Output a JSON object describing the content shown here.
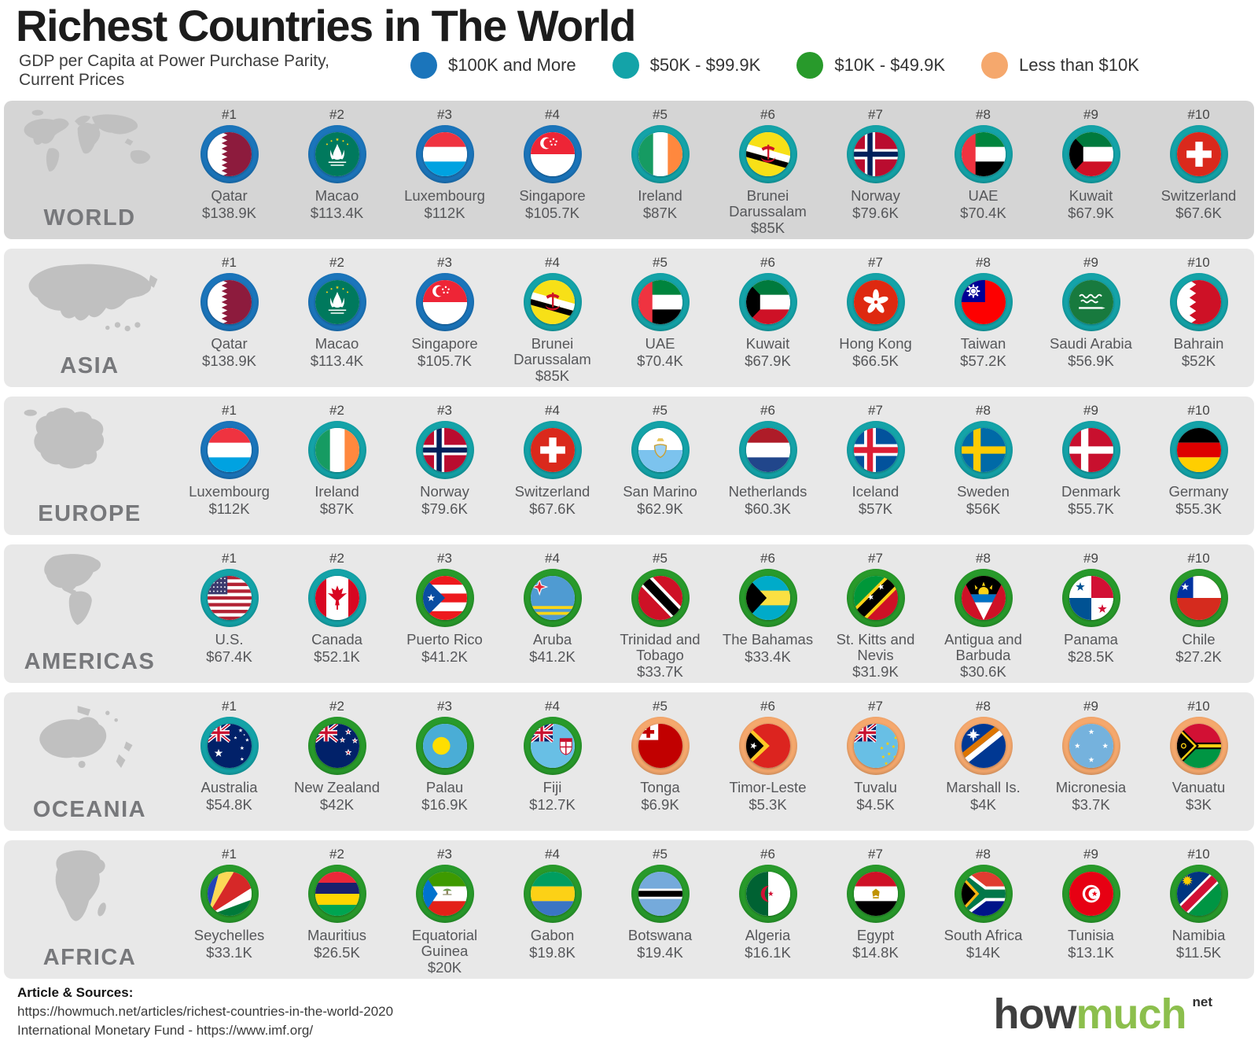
{
  "header": {
    "title": "Richest Countries in The World",
    "subtitle_line1": "GDP per Capita at Power Purchase Parity,",
    "subtitle_line2": "Current Prices"
  },
  "tiers": {
    "blue": "#1b75bb",
    "teal": "#14a3a8",
    "green": "#289a2b",
    "orange": "#f5a86d"
  },
  "legend": [
    {
      "label": "$100K and More",
      "tier": "blue"
    },
    {
      "label": "$50K - $99.9K",
      "tier": "teal"
    },
    {
      "label": "$10K - $49.9K",
      "tier": "green"
    },
    {
      "label": "Less than $10K",
      "tier": "orange"
    }
  ],
  "regions": [
    {
      "name": "WORLD",
      "map": "world",
      "items": [
        {
          "rank": "#1",
          "country": "Qatar",
          "value": "$138.9K",
          "tier": "blue",
          "flag": "qatar"
        },
        {
          "rank": "#2",
          "country": "Macao",
          "value": "$113.4K",
          "tier": "blue",
          "flag": "macao"
        },
        {
          "rank": "#3",
          "country": "Luxembourg",
          "value": "$112K",
          "tier": "blue",
          "flag": "luxembourg"
        },
        {
          "rank": "#4",
          "country": "Singapore",
          "value": "$105.7K",
          "tier": "blue",
          "flag": "singapore"
        },
        {
          "rank": "#5",
          "country": "Ireland",
          "value": "$87K",
          "tier": "teal",
          "flag": "ireland"
        },
        {
          "rank": "#6",
          "country": "Brunei Darussalam",
          "value": "$85K",
          "tier": "teal",
          "flag": "brunei"
        },
        {
          "rank": "#7",
          "country": "Norway",
          "value": "$79.6K",
          "tier": "teal",
          "flag": "norway"
        },
        {
          "rank": "#8",
          "country": "UAE",
          "value": "$70.4K",
          "tier": "teal",
          "flag": "uae"
        },
        {
          "rank": "#9",
          "country": "Kuwait",
          "value": "$67.9K",
          "tier": "teal",
          "flag": "kuwait"
        },
        {
          "rank": "#10",
          "country": "Switzerland",
          "value": "$67.6K",
          "tier": "teal",
          "flag": "switzerland"
        }
      ]
    },
    {
      "name": "ASIA",
      "map": "asia",
      "items": [
        {
          "rank": "#1",
          "country": "Qatar",
          "value": "$138.9K",
          "tier": "blue",
          "flag": "qatar"
        },
        {
          "rank": "#2",
          "country": "Macao",
          "value": "$113.4K",
          "tier": "blue",
          "flag": "macao"
        },
        {
          "rank": "#3",
          "country": "Singapore",
          "value": "$105.7K",
          "tier": "blue",
          "flag": "singapore"
        },
        {
          "rank": "#4",
          "country": "Brunei Darussalam",
          "value": "$85K",
          "tier": "teal",
          "flag": "brunei"
        },
        {
          "rank": "#5",
          "country": "UAE",
          "value": "$70.4K",
          "tier": "teal",
          "flag": "uae"
        },
        {
          "rank": "#6",
          "country": "Kuwait",
          "value": "$67.9K",
          "tier": "teal",
          "flag": "kuwait"
        },
        {
          "rank": "#7",
          "country": "Hong Kong",
          "value": "$66.5K",
          "tier": "teal",
          "flag": "hongkong"
        },
        {
          "rank": "#8",
          "country": "Taiwan",
          "value": "$57.2K",
          "tier": "teal",
          "flag": "taiwan"
        },
        {
          "rank": "#9",
          "country": "Saudi Arabia",
          "value": "$56.9K",
          "tier": "teal",
          "flag": "saudiarabia"
        },
        {
          "rank": "#10",
          "country": "Bahrain",
          "value": "$52K",
          "tier": "teal",
          "flag": "bahrain"
        }
      ]
    },
    {
      "name": "EUROPE",
      "map": "europe",
      "items": [
        {
          "rank": "#1",
          "country": "Luxembourg",
          "value": "$112K",
          "tier": "blue",
          "flag": "luxembourg"
        },
        {
          "rank": "#2",
          "country": "Ireland",
          "value": "$87K",
          "tier": "teal",
          "flag": "ireland"
        },
        {
          "rank": "#3",
          "country": "Norway",
          "value": "$79.6K",
          "tier": "teal",
          "flag": "norway"
        },
        {
          "rank": "#4",
          "country": "Switzerland",
          "value": "$67.6K",
          "tier": "teal",
          "flag": "switzerland"
        },
        {
          "rank": "#5",
          "country": "San Marino",
          "value": "$62.9K",
          "tier": "teal",
          "flag": "sanmarino"
        },
        {
          "rank": "#6",
          "country": "Netherlands",
          "value": "$60.3K",
          "tier": "teal",
          "flag": "netherlands"
        },
        {
          "rank": "#7",
          "country": "Iceland",
          "value": "$57K",
          "tier": "teal",
          "flag": "iceland"
        },
        {
          "rank": "#8",
          "country": "Sweden",
          "value": "$56K",
          "tier": "teal",
          "flag": "sweden"
        },
        {
          "rank": "#9",
          "country": "Denmark",
          "value": "$55.7K",
          "tier": "teal",
          "flag": "denmark"
        },
        {
          "rank": "#10",
          "country": "Germany",
          "value": "$55.3K",
          "tier": "teal",
          "flag": "germany"
        }
      ]
    },
    {
      "name": "AMERICAS",
      "map": "americas",
      "items": [
        {
          "rank": "#1",
          "country": "U.S.",
          "value": "$67.4K",
          "tier": "teal",
          "flag": "us"
        },
        {
          "rank": "#2",
          "country": "Canada",
          "value": "$52.1K",
          "tier": "teal",
          "flag": "canada"
        },
        {
          "rank": "#3",
          "country": "Puerto Rico",
          "value": "$41.2K",
          "tier": "green",
          "flag": "puertorico"
        },
        {
          "rank": "#4",
          "country": "Aruba",
          "value": "$41.2K",
          "tier": "green",
          "flag": "aruba"
        },
        {
          "rank": "#5",
          "country": "Trinidad and Tobago",
          "value": "$33.7K",
          "tier": "green",
          "flag": "trinidad"
        },
        {
          "rank": "#6",
          "country": "The Bahamas",
          "value": "$33.4K",
          "tier": "green",
          "flag": "bahamas"
        },
        {
          "rank": "#7",
          "country": "St. Kitts and Nevis",
          "value": "$31.9K",
          "tier": "green",
          "flag": "stkitts"
        },
        {
          "rank": "#8",
          "country": "Antigua and Barbuda",
          "value": "$30.6K",
          "tier": "green",
          "flag": "antigua"
        },
        {
          "rank": "#9",
          "country": "Panama",
          "value": "$28.5K",
          "tier": "green",
          "flag": "panama"
        },
        {
          "rank": "#10",
          "country": "Chile",
          "value": "$27.2K",
          "tier": "green",
          "flag": "chile"
        }
      ]
    },
    {
      "name": "OCEANIA",
      "map": "oceania",
      "items": [
        {
          "rank": "#1",
          "country": "Australia",
          "value": "$54.8K",
          "tier": "teal",
          "flag": "australia"
        },
        {
          "rank": "#2",
          "country": "New Zealand",
          "value": "$42K",
          "tier": "green",
          "flag": "newzealand"
        },
        {
          "rank": "#3",
          "country": "Palau",
          "value": "$16.9K",
          "tier": "green",
          "flag": "palau"
        },
        {
          "rank": "#4",
          "country": "Fiji",
          "value": "$12.7K",
          "tier": "green",
          "flag": "fiji"
        },
        {
          "rank": "#5",
          "country": "Tonga",
          "value": "$6.9K",
          "tier": "orange",
          "flag": "tonga"
        },
        {
          "rank": "#6",
          "country": "Timor-Leste",
          "value": "$5.3K",
          "tier": "orange",
          "flag": "timorleste"
        },
        {
          "rank": "#7",
          "country": "Tuvalu",
          "value": "$4.5K",
          "tier": "orange",
          "flag": "tuvalu"
        },
        {
          "rank": "#8",
          "country": "Marshall Is.",
          "value": "$4K",
          "tier": "orange",
          "flag": "marshall"
        },
        {
          "rank": "#9",
          "country": "Micronesia",
          "value": "$3.7K",
          "tier": "orange",
          "flag": "micronesia"
        },
        {
          "rank": "#10",
          "country": "Vanuatu",
          "value": "$3K",
          "tier": "orange",
          "flag": "vanuatu"
        }
      ]
    },
    {
      "name": "AFRICA",
      "map": "africa",
      "items": [
        {
          "rank": "#1",
          "country": "Seychelles",
          "value": "$33.1K",
          "tier": "green",
          "flag": "seychelles"
        },
        {
          "rank": "#2",
          "country": "Mauritius",
          "value": "$26.5K",
          "tier": "green",
          "flag": "mauritius"
        },
        {
          "rank": "#3",
          "country": "Equatorial Guinea",
          "value": "$20K",
          "tier": "green",
          "flag": "eqguinea"
        },
        {
          "rank": "#4",
          "country": "Gabon",
          "value": "$19.8K",
          "tier": "green",
          "flag": "gabon"
        },
        {
          "rank": "#5",
          "country": "Botswana",
          "value": "$19.4K",
          "tier": "green",
          "flag": "botswana"
        },
        {
          "rank": "#6",
          "country": "Algeria",
          "value": "$16.1K",
          "tier": "green",
          "flag": "algeria"
        },
        {
          "rank": "#7",
          "country": "Egypt",
          "value": "$14.8K",
          "tier": "green",
          "flag": "egypt"
        },
        {
          "rank": "#8",
          "country": "South Africa",
          "value": "$14K",
          "tier": "green",
          "flag": "southafrica"
        },
        {
          "rank": "#9",
          "country": "Tunisia",
          "value": "$13.1K",
          "tier": "green",
          "flag": "tunisia"
        },
        {
          "rank": "#10",
          "country": "Namibia",
          "value": "$11.5K",
          "tier": "green",
          "flag": "namibia"
        }
      ]
    }
  ],
  "footer": {
    "sources_label": "Article & Sources:",
    "source1": "https://howmuch.net/articles/richest-countries-in-the-world-2020",
    "source2": "International Monetary Fund - https://www.imf.org/",
    "logo_part1": "how",
    "logo_part2": "much",
    "logo_suffix": "net"
  },
  "chart_data": {
    "type": "table",
    "title": "Richest Countries in The World",
    "subtitle": "GDP per Capita at Power Purchase Parity, Current Prices",
    "unit": "USD thousands per capita (PPP)",
    "legend": [
      "$100K and More",
      "$50K - $99.9K",
      "$10K - $49.9K",
      "Less than $10K"
    ],
    "series": [
      {
        "name": "WORLD",
        "countries": [
          "Qatar",
          "Macao",
          "Luxembourg",
          "Singapore",
          "Ireland",
          "Brunei Darussalam",
          "Norway",
          "UAE",
          "Kuwait",
          "Switzerland"
        ],
        "values_k": [
          138.9,
          113.4,
          112,
          105.7,
          87,
          85,
          79.6,
          70.4,
          67.9,
          67.6
        ]
      },
      {
        "name": "ASIA",
        "countries": [
          "Qatar",
          "Macao",
          "Singapore",
          "Brunei Darussalam",
          "UAE",
          "Kuwait",
          "Hong Kong",
          "Taiwan",
          "Saudi Arabia",
          "Bahrain"
        ],
        "values_k": [
          138.9,
          113.4,
          105.7,
          85,
          70.4,
          67.9,
          66.5,
          57.2,
          56.9,
          52
        ]
      },
      {
        "name": "EUROPE",
        "countries": [
          "Luxembourg",
          "Ireland",
          "Norway",
          "Switzerland",
          "San Marino",
          "Netherlands",
          "Iceland",
          "Sweden",
          "Denmark",
          "Germany"
        ],
        "values_k": [
          112,
          87,
          79.6,
          67.6,
          62.9,
          60.3,
          57,
          56,
          55.7,
          55.3
        ]
      },
      {
        "name": "AMERICAS",
        "countries": [
          "U.S.",
          "Canada",
          "Puerto Rico",
          "Aruba",
          "Trinidad and Tobago",
          "The Bahamas",
          "St. Kitts and Nevis",
          "Antigua and Barbuda",
          "Panama",
          "Chile"
        ],
        "values_k": [
          67.4,
          52.1,
          41.2,
          41.2,
          33.7,
          33.4,
          31.9,
          30.6,
          28.5,
          27.2
        ]
      },
      {
        "name": "OCEANIA",
        "countries": [
          "Australia",
          "New Zealand",
          "Palau",
          "Fiji",
          "Tonga",
          "Timor-Leste",
          "Tuvalu",
          "Marshall Is.",
          "Micronesia",
          "Vanuatu"
        ],
        "values_k": [
          54.8,
          42,
          16.9,
          12.7,
          6.9,
          5.3,
          4.5,
          4,
          3.7,
          3
        ]
      },
      {
        "name": "AFRICA",
        "countries": [
          "Seychelles",
          "Mauritius",
          "Equatorial Guinea",
          "Gabon",
          "Botswana",
          "Algeria",
          "Egypt",
          "South Africa",
          "Tunisia",
          "Namibia"
        ],
        "values_k": [
          33.1,
          26.5,
          20,
          19.8,
          19.4,
          16.1,
          14.8,
          14,
          13.1,
          11.5
        ]
      }
    ]
  }
}
